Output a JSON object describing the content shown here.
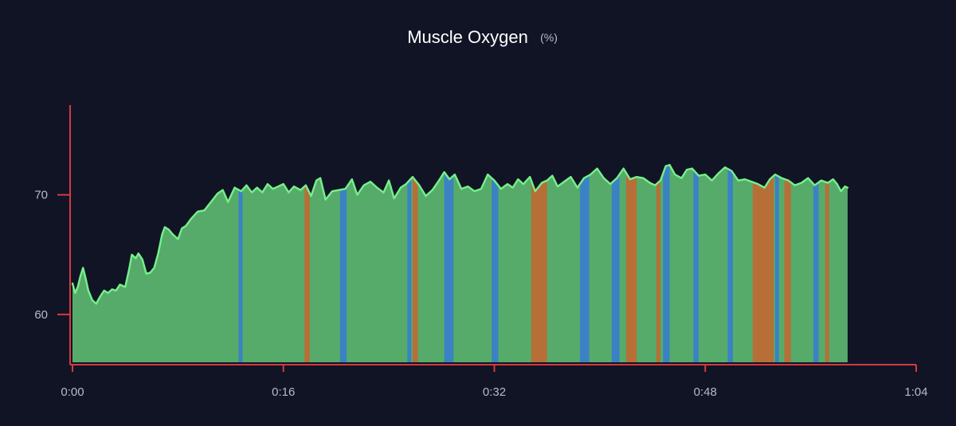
{
  "chart_data": {
    "type": "area",
    "title": "Muscle Oxygen",
    "title_unit": "(%)",
    "xlabel": "",
    "ylabel": "",
    "x_unit": "minutes",
    "x_tick_labels": [
      "0:00",
      "0:16",
      "0:32",
      "0:48",
      "1:04"
    ],
    "x_ticks": [
      0,
      16,
      32,
      48,
      64
    ],
    "xlim": [
      0,
      64
    ],
    "y_tick_labels": [
      "60",
      "70"
    ],
    "y_ticks": [
      60,
      70
    ],
    "ylim": [
      56,
      77.5
    ],
    "grid": false,
    "legend": "none",
    "colors": {
      "background": "#111425",
      "axis": "#d7393f",
      "fill_green": "#56ab6a",
      "line_green": "#76f08b",
      "band_blue": "#3a82c4",
      "band_orange": "#b66f37"
    },
    "series": [
      {
        "values": [
          [
            0,
            62.6
          ],
          [
            0.2,
            61.8
          ],
          [
            0.4,
            62.3
          ],
          [
            0.6,
            63.2
          ],
          [
            0.8,
            63.9
          ],
          [
            1.0,
            63.0
          ],
          [
            1.2,
            62.0
          ],
          [
            1.5,
            61.2
          ],
          [
            1.8,
            60.9
          ],
          [
            2.1,
            61.5
          ],
          [
            2.4,
            62.0
          ],
          [
            2.7,
            61.8
          ],
          [
            3.0,
            62.1
          ],
          [
            3.3,
            62.0
          ],
          [
            3.6,
            62.5
          ],
          [
            4.0,
            62.3
          ],
          [
            4.3,
            63.8
          ],
          [
            4.5,
            65.0
          ],
          [
            4.8,
            64.7
          ],
          [
            5.0,
            65.1
          ],
          [
            5.3,
            64.6
          ],
          [
            5.6,
            63.4
          ],
          [
            5.9,
            63.5
          ],
          [
            6.2,
            63.9
          ],
          [
            6.5,
            65.1
          ],
          [
            6.8,
            66.7
          ],
          [
            7.0,
            67.3
          ],
          [
            7.3,
            67.1
          ],
          [
            7.6,
            66.7
          ],
          [
            8.0,
            66.3
          ],
          [
            8.3,
            67.2
          ],
          [
            8.6,
            67.4
          ],
          [
            9.0,
            68.0
          ],
          [
            9.5,
            68.6
          ],
          [
            10.0,
            68.7
          ],
          [
            10.5,
            69.4
          ],
          [
            11.0,
            70.1
          ],
          [
            11.4,
            70.4
          ],
          [
            11.8,
            69.4
          ],
          [
            12.3,
            70.6
          ],
          [
            12.8,
            70.3
          ],
          [
            13.2,
            70.8
          ],
          [
            13.6,
            70.2
          ],
          [
            14.0,
            70.6
          ],
          [
            14.4,
            70.2
          ],
          [
            14.8,
            70.9
          ],
          [
            15.2,
            70.5
          ],
          [
            15.6,
            70.7
          ],
          [
            16.0,
            70.9
          ],
          [
            16.4,
            70.2
          ],
          [
            16.8,
            70.7
          ],
          [
            17.3,
            70.4
          ],
          [
            17.7,
            70.8
          ],
          [
            18.1,
            69.9
          ],
          [
            18.5,
            71.2
          ],
          [
            18.8,
            71.4
          ],
          [
            19.2,
            69.6
          ],
          [
            19.7,
            70.3
          ],
          [
            20.2,
            70.4
          ],
          [
            20.7,
            70.5
          ],
          [
            21.2,
            71.3
          ],
          [
            21.6,
            70.0
          ],
          [
            22.1,
            70.8
          ],
          [
            22.6,
            71.1
          ],
          [
            23.1,
            70.6
          ],
          [
            23.6,
            70.2
          ],
          [
            24.0,
            71.2
          ],
          [
            24.4,
            69.7
          ],
          [
            24.9,
            70.6
          ],
          [
            25.3,
            70.9
          ],
          [
            25.8,
            71.5
          ],
          [
            26.3,
            70.8
          ],
          [
            26.8,
            69.9
          ],
          [
            27.3,
            70.4
          ],
          [
            27.8,
            71.2
          ],
          [
            28.2,
            71.9
          ],
          [
            28.6,
            71.3
          ],
          [
            29.0,
            71.7
          ],
          [
            29.5,
            70.5
          ],
          [
            30.0,
            70.7
          ],
          [
            30.5,
            70.3
          ],
          [
            31.0,
            70.5
          ],
          [
            31.5,
            71.7
          ],
          [
            32.0,
            71.2
          ],
          [
            32.5,
            70.5
          ],
          [
            33.0,
            70.9
          ],
          [
            33.4,
            70.6
          ],
          [
            33.8,
            71.3
          ],
          [
            34.2,
            70.9
          ],
          [
            34.7,
            71.5
          ],
          [
            35.1,
            70.3
          ],
          [
            35.6,
            71.0
          ],
          [
            36.0,
            71.2
          ],
          [
            36.4,
            71.6
          ],
          [
            36.8,
            70.7
          ],
          [
            37.3,
            71.1
          ],
          [
            37.8,
            71.5
          ],
          [
            38.3,
            70.6
          ],
          [
            38.8,
            71.4
          ],
          [
            39.3,
            71.7
          ],
          [
            39.8,
            72.2
          ],
          [
            40.3,
            71.4
          ],
          [
            40.8,
            70.9
          ],
          [
            41.3,
            71.4
          ],
          [
            41.8,
            72.2
          ],
          [
            42.3,
            71.3
          ],
          [
            42.8,
            71.5
          ],
          [
            43.3,
            71.4
          ],
          [
            43.8,
            71.0
          ],
          [
            44.2,
            70.8
          ],
          [
            44.6,
            71.2
          ],
          [
            45.0,
            72.4
          ],
          [
            45.3,
            72.5
          ],
          [
            45.7,
            71.7
          ],
          [
            46.2,
            71.4
          ],
          [
            46.6,
            72.1
          ],
          [
            47.0,
            72.2
          ],
          [
            47.5,
            71.6
          ],
          [
            48.0,
            71.7
          ],
          [
            48.5,
            71.2
          ],
          [
            49.0,
            71.8
          ],
          [
            49.5,
            72.3
          ],
          [
            50.0,
            72.0
          ],
          [
            50.5,
            71.2
          ],
          [
            51.0,
            71.3
          ],
          [
            51.5,
            71.1
          ],
          [
            52.0,
            70.9
          ],
          [
            52.5,
            70.6
          ],
          [
            52.9,
            71.3
          ],
          [
            53.3,
            71.7
          ],
          [
            53.8,
            71.4
          ],
          [
            54.3,
            71.2
          ],
          [
            54.8,
            70.8
          ],
          [
            55.3,
            71.0
          ],
          [
            55.8,
            71.4
          ],
          [
            56.3,
            70.8
          ],
          [
            56.8,
            71.2
          ],
          [
            57.3,
            71.0
          ],
          [
            57.7,
            71.3
          ],
          [
            58.0,
            70.9
          ],
          [
            58.3,
            70.3
          ],
          [
            58.6,
            70.7
          ],
          [
            58.8,
            70.6
          ]
        ]
      }
    ],
    "bands": [
      {
        "start": 12.6,
        "end": 12.9,
        "color": "blue"
      },
      {
        "start": 17.6,
        "end": 18.0,
        "color": "orange"
      },
      {
        "start": 20.3,
        "end": 20.8,
        "color": "blue"
      },
      {
        "start": 25.4,
        "end": 25.7,
        "color": "blue"
      },
      {
        "start": 25.8,
        "end": 26.2,
        "color": "orange"
      },
      {
        "start": 28.2,
        "end": 28.9,
        "color": "blue"
      },
      {
        "start": 31.8,
        "end": 32.3,
        "color": "blue"
      },
      {
        "start": 34.8,
        "end": 36.0,
        "color": "orange"
      },
      {
        "start": 38.5,
        "end": 39.2,
        "color": "blue"
      },
      {
        "start": 40.9,
        "end": 41.5,
        "color": "blue"
      },
      {
        "start": 42.0,
        "end": 42.8,
        "color": "orange"
      },
      {
        "start": 44.3,
        "end": 44.6,
        "color": "orange"
      },
      {
        "start": 44.8,
        "end": 45.3,
        "color": "blue"
      },
      {
        "start": 47.1,
        "end": 47.5,
        "color": "blue"
      },
      {
        "start": 49.7,
        "end": 50.1,
        "color": "blue"
      },
      {
        "start": 51.6,
        "end": 53.2,
        "color": "orange"
      },
      {
        "start": 53.3,
        "end": 53.6,
        "color": "blue"
      },
      {
        "start": 54.0,
        "end": 54.5,
        "color": "orange"
      },
      {
        "start": 56.2,
        "end": 56.6,
        "color": "blue"
      },
      {
        "start": 57.1,
        "end": 57.4,
        "color": "orange"
      }
    ]
  }
}
